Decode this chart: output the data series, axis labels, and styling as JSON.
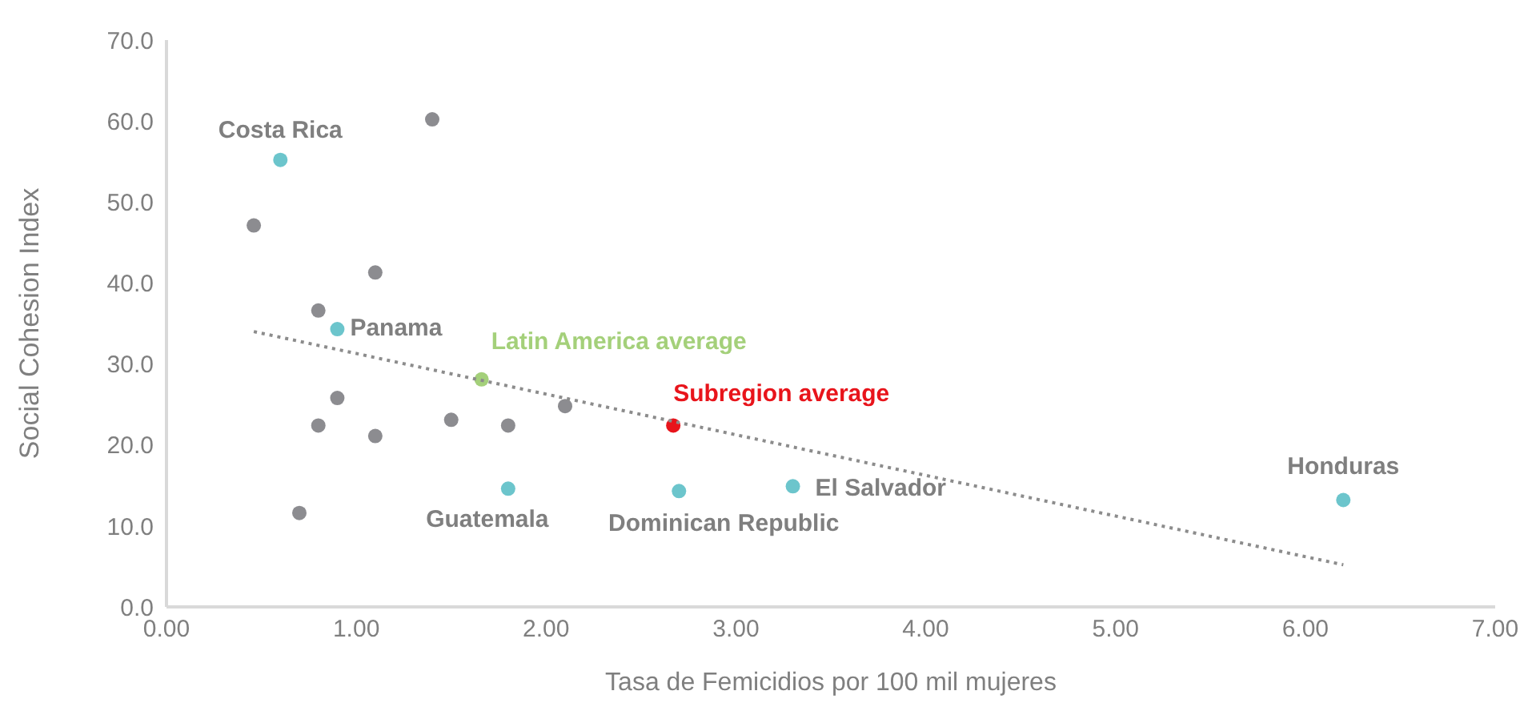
{
  "chart_data": {
    "type": "scatter",
    "xlabel": "Tasa de Femicidios por 100 mil mujeres",
    "ylabel": "Social Cohesion Index",
    "xlim": [
      0,
      7
    ],
    "ylim": [
      0,
      70
    ],
    "xticks": [
      {
        "value": 0,
        "label": "0.00"
      },
      {
        "value": 1,
        "label": "1.00"
      },
      {
        "value": 2,
        "label": "2.00"
      },
      {
        "value": 3,
        "label": "3.00"
      },
      {
        "value": 4,
        "label": "4.00"
      },
      {
        "value": 5,
        "label": "5.00"
      },
      {
        "value": 6,
        "label": "6.00"
      },
      {
        "value": 7,
        "label": "7.00"
      }
    ],
    "yticks": [
      {
        "value": 0,
        "label": "0.0"
      },
      {
        "value": 10,
        "label": "10.0"
      },
      {
        "value": 20,
        "label": "20.0"
      },
      {
        "value": 30,
        "label": "30.0"
      },
      {
        "value": 40,
        "label": "40.0"
      },
      {
        "value": 50,
        "label": "50.0"
      },
      {
        "value": 60,
        "label": "60.0"
      },
      {
        "value": 70,
        "label": "70.0"
      }
    ],
    "grid": false,
    "legend": false,
    "marker": "circle",
    "series": [
      {
        "color": "#8c8c90",
        "x": [
          0.46,
          0.8,
          1.1,
          1.4,
          0.9,
          0.8,
          1.1,
          0.7,
          1.5,
          1.8,
          2.1
        ],
        "values": [
          47.1,
          36.6,
          41.3,
          60.2,
          25.8,
          22.4,
          21.1,
          11.6,
          23.1,
          22.4,
          24.8
        ]
      },
      {
        "color": "#6cc5cc",
        "x": [
          0.6,
          0.9,
          1.8,
          2.7,
          3.3,
          6.2
        ],
        "values": [
          55.2,
          34.3,
          14.6,
          14.3,
          14.9,
          13.2
        ]
      },
      {
        "color": "#a4d07a",
        "x": [
          1.66
        ],
        "values": [
          28.1
        ]
      },
      {
        "color": "#e8141b",
        "x": [
          2.67
        ],
        "values": [
          22.4
        ]
      },
      {
        "type": "line",
        "color": "#8c8c8c",
        "line_style": "dotted",
        "marker": "none",
        "x": [
          0.46,
          6.2
        ],
        "values": [
          34.0,
          5.2
        ]
      }
    ],
    "annotations": [
      {
        "text": "Costa Rica",
        "x": 0.6,
        "y": 55.2
      },
      {
        "text": "Panama",
        "x": 0.9,
        "y": 34.3
      },
      {
        "text": "Guatemala",
        "x": 1.8,
        "y": 14.6
      },
      {
        "text": "Dominican Republic",
        "x": 2.7,
        "y": 14.3
      },
      {
        "text": "El Salvador",
        "x": 3.3,
        "y": 14.9
      },
      {
        "text": "Honduras",
        "x": 6.2,
        "y": 13.2
      },
      {
        "text": "Latin America average",
        "x": 1.66,
        "y": 28.1
      },
      {
        "text": "Subregion average",
        "x": 2.67,
        "y": 22.4
      }
    ]
  }
}
